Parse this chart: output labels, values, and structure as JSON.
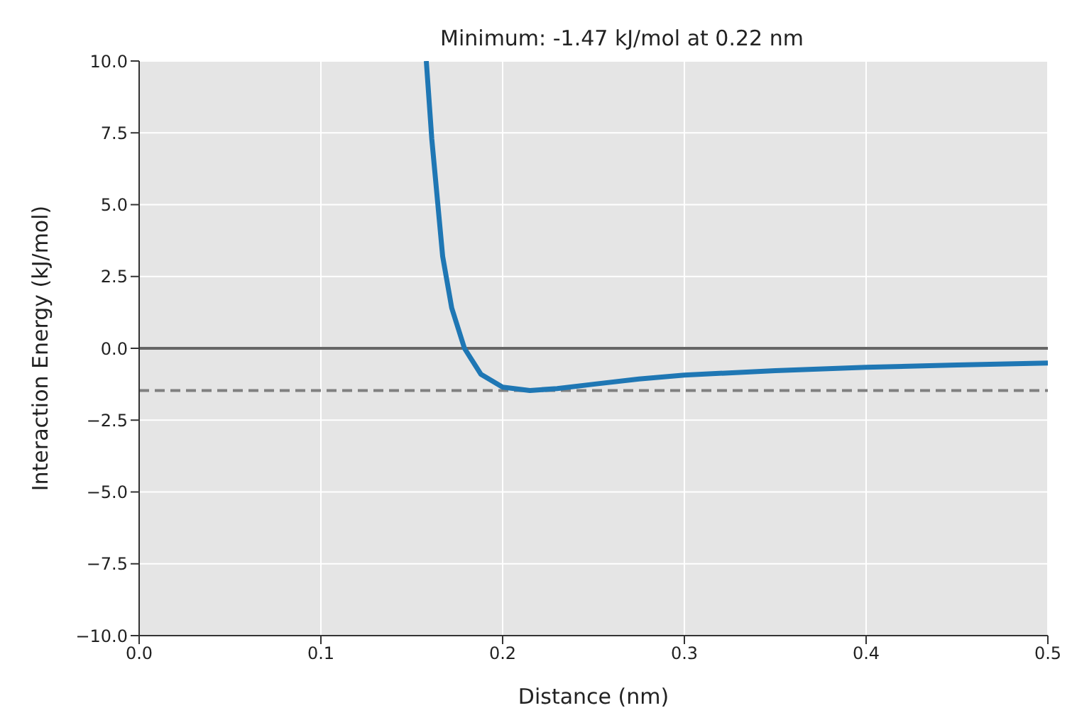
{
  "chart_data": {
    "type": "line",
    "title": "Minimum: -1.47 kJ/mol at 0.22 nm",
    "xlabel": "Distance (nm)",
    "ylabel": "Interaction Energy (kJ/mol)",
    "series": [
      {
        "color": "#1f77b4",
        "x": [
          0.158,
          0.161,
          0.167,
          0.172,
          0.179,
          0.188,
          0.2,
          0.215,
          0.23,
          0.25,
          0.275,
          0.3,
          0.35,
          0.4,
          0.45,
          0.5
        ],
        "values": [
          10,
          7.3,
          3.2,
          1.4,
          0,
          -0.9,
          -1.35,
          -1.47,
          -1.4,
          -1.25,
          -1.07,
          -0.93,
          -0.78,
          -0.66,
          -0.58,
          -0.51
        ]
      }
    ],
    "xlim": [
      0,
      0.5
    ],
    "xticks": [
      {
        "value": 0,
        "label": "0.0"
      },
      0.1,
      0.2,
      0.3,
      0.4,
      0.5
    ],
    "ylim": [
      -10,
      10
    ],
    "yticks": [
      {
        "value": -10,
        "label": "−10.0"
      },
      {
        "value": -7.5,
        "label": "−7.5"
      },
      {
        "value": -5,
        "label": "−5.0"
      },
      {
        "value": -2.5,
        "label": "−2.5"
      },
      {
        "value": 0,
        "label": "0.0"
      },
      2.5,
      {
        "value": 5,
        "label": "5.0"
      },
      7.5,
      {
        "value": 10,
        "label": "10.0"
      }
    ],
    "ref_lines": [
      {
        "axis": "y",
        "value": 0,
        "color": "#666666",
        "line_style": "solid"
      },
      {
        "axis": "y",
        "value": -1.47,
        "color": "#808080",
        "line_style": "dashed"
      }
    ],
    "grid": true,
    "marker": "none",
    "line_style": "solid"
  }
}
